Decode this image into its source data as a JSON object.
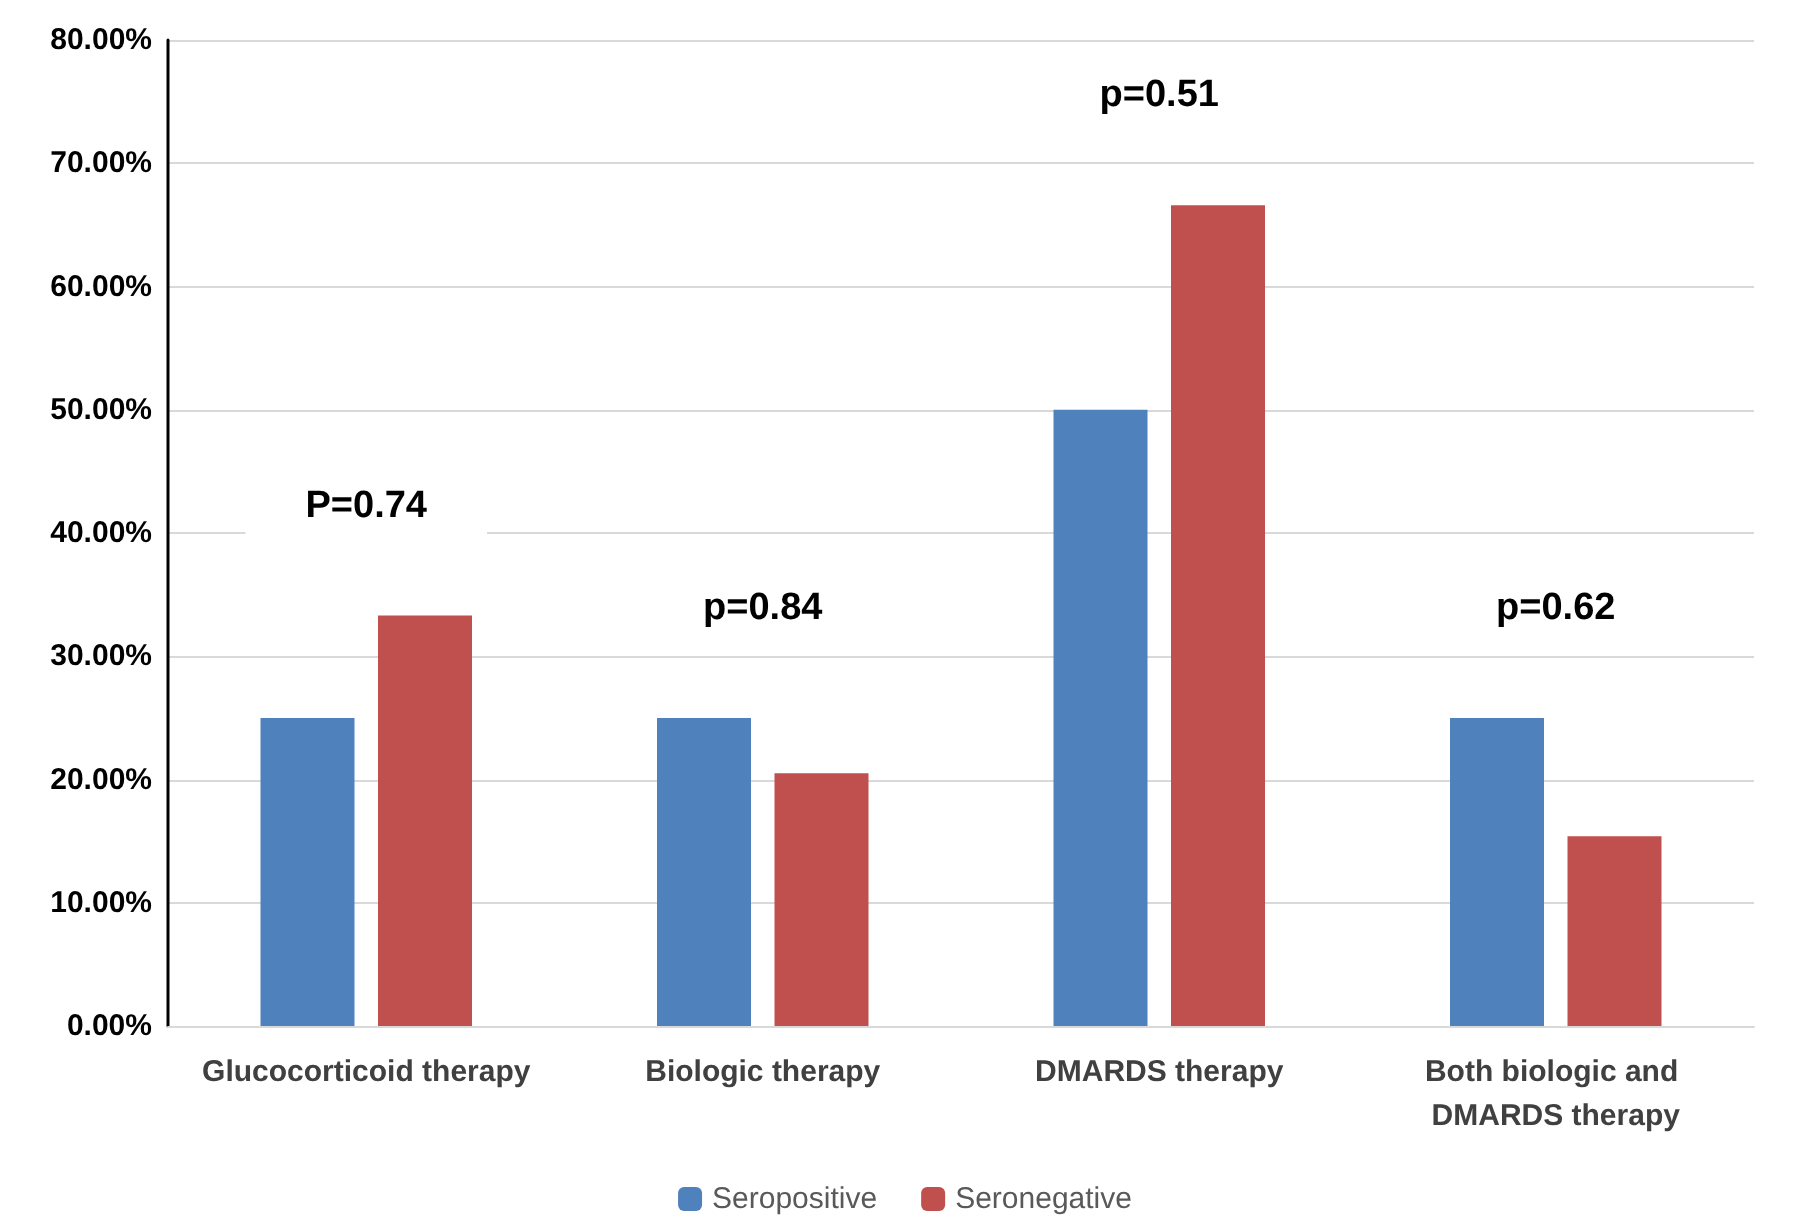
{
  "chart_data": {
    "type": "bar",
    "categories": [
      "Glucocorticoid therapy",
      "Biologic therapy",
      "DMARDS therapy",
      "Both biologic and DMARDS therapy"
    ],
    "series": [
      {
        "name": "Seropositive",
        "color": "#4f81bd",
        "values": [
          25,
          25,
          50,
          25
        ]
      },
      {
        "name": "Seronegative",
        "color": "#c0504d",
        "values": [
          33.3,
          20.5,
          66.6,
          15.4
        ]
      }
    ],
    "ylim": [
      0,
      80
    ],
    "yticks": [
      {
        "value": 0,
        "label": "0.00%"
      },
      {
        "value": 10,
        "label": "10.00%"
      },
      {
        "value": 20,
        "label": "20.00%"
      },
      {
        "value": 30,
        "label": "30.00%"
      },
      {
        "value": 40,
        "label": "40.00%"
      },
      {
        "value": 50,
        "label": "50.00%"
      },
      {
        "value": 60,
        "label": "60.00%"
      },
      {
        "value": 70,
        "label": "70.00%"
      },
      {
        "value": 80,
        "label": "80.00%"
      }
    ],
    "annotations": [
      "P=0.74",
      "p=0.84",
      "p=0.51",
      "p=0.62"
    ],
    "grid": "y",
    "legend": "bottom"
  }
}
